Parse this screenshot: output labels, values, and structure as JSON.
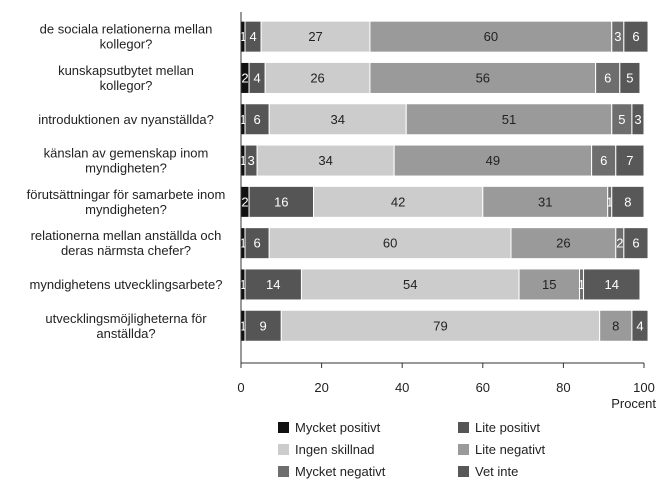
{
  "chart_data": {
    "type": "bar",
    "orientation": "horizontal",
    "stacked": true,
    "categories": [
      [
        "de sociala relationerna mellan",
        "kollegor?"
      ],
      [
        "kunskapsutbytet mellan",
        "kollegor?"
      ],
      [
        "introduktionen av nyanställda?"
      ],
      [
        "känslan av gemenskap inom",
        "myndigheten?"
      ],
      [
        "förutsättningar för samarbete inom",
        "myndigheten?"
      ],
      [
        "relationerna mellan anställda och",
        "deras närmsta chefer?"
      ],
      [
        "myndighetens utvecklingsarbete?"
      ],
      [
        "utvecklingsmöjligheterna för",
        "anställda?"
      ]
    ],
    "series": [
      {
        "name": "Mycket positivt",
        "color": "#111111",
        "label_color": "#ffffff",
        "values": [
          1,
          2,
          1,
          1,
          2,
          1,
          1,
          1
        ]
      },
      {
        "name": "Lite positivt",
        "color": "#555555",
        "label_color": "#ffffff",
        "values": [
          4,
          4,
          6,
          3,
          16,
          6,
          14,
          9
        ]
      },
      {
        "name": "Ingen skillnad",
        "color": "#cccccc",
        "label_color": "#222222",
        "values": [
          27,
          26,
          34,
          34,
          42,
          60,
          54,
          79
        ]
      },
      {
        "name": "Lite negativt",
        "color": "#9a9a9a",
        "label_color": "#222222",
        "values": [
          60,
          56,
          51,
          49,
          31,
          26,
          15,
          8
        ]
      },
      {
        "name": "Mycket negativt",
        "color": "#6e6e6e",
        "label_color": "#ffffff",
        "values": [
          3,
          6,
          5,
          6,
          1,
          2,
          1,
          0
        ]
      },
      {
        "name": "Vet inte",
        "color": "#585858",
        "label_color": "#ffffff",
        "values": [
          6,
          5,
          3,
          7,
          8,
          6,
          14,
          4
        ]
      }
    ],
    "xlim": [
      0,
      100
    ],
    "xticks": [
      0,
      20,
      40,
      60,
      80,
      100
    ],
    "xlabel": "Procent",
    "legend_position": "bottom",
    "grid": false
  }
}
